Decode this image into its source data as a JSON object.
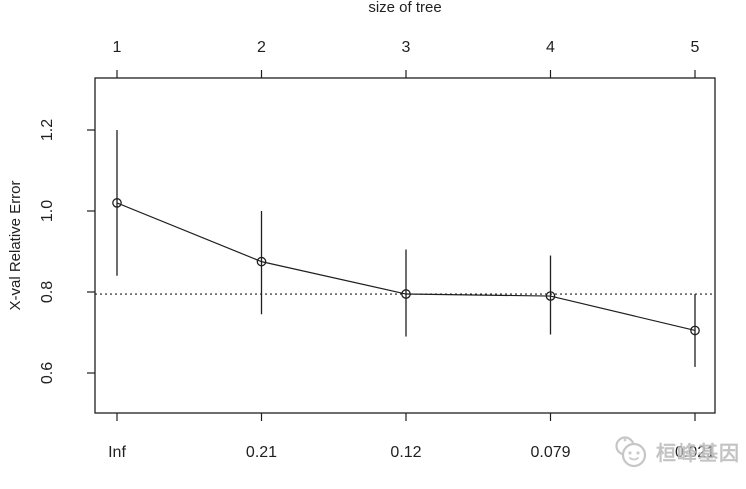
{
  "watermark": {
    "text": "桓峰基因",
    "icon": "panda-chat-logo-icon",
    "color": "#c4c4c4"
  },
  "chart_data": {
    "type": "line",
    "title": "size of tree",
    "ylabel": "X-val Relative Error",
    "top_axis": {
      "label": "size of tree",
      "ticks": [
        1,
        2,
        3,
        4,
        5
      ]
    },
    "bottom_axis": {
      "tick_labels": [
        "Inf",
        "0.21",
        "0.12",
        "0.079",
        "0.021"
      ]
    },
    "y_axis": {
      "ticks": [
        0.6,
        0.8,
        1.0,
        1.2
      ],
      "tick_labels": [
        "0.6",
        "0.8",
        "1.0",
        "1.2"
      ]
    },
    "x": [
      1,
      2,
      3,
      4,
      5
    ],
    "series": [
      {
        "name": "X-val Relative Error",
        "values": [
          1.02,
          0.875,
          0.795,
          0.79,
          0.705
        ],
        "error_low": [
          0.84,
          0.745,
          0.69,
          0.695,
          0.615
        ],
        "error_high": [
          1.2,
          1.0,
          0.905,
          0.89,
          0.795
        ]
      }
    ],
    "reference_line": {
      "value": 0.795,
      "style": "dotted"
    },
    "ylim": [
      0.5,
      1.33
    ],
    "xlim": [
      0.85,
      5.14
    ],
    "grid": false,
    "marker": "open-circle",
    "line_color": "#1f1f1f",
    "background": "#ffffff"
  }
}
